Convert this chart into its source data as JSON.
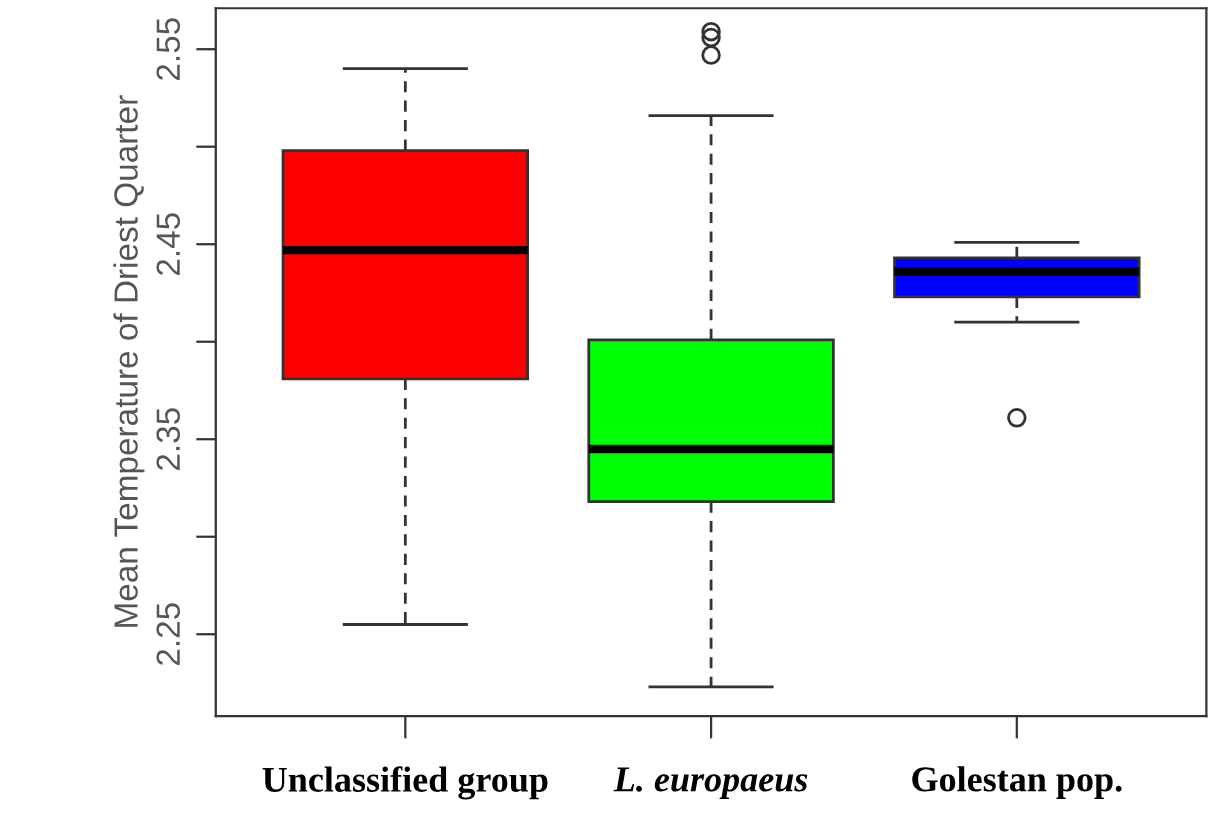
{
  "chart_data": {
    "type": "box",
    "ylabel": "Mean Temperature of Driest Quarter",
    "categories": [
      "Unclassified group",
      "L. europaeus",
      "Golestan pop."
    ],
    "colors": [
      "#ff0000",
      "#00ff00",
      "#0000ff"
    ],
    "boxes": [
      {
        "low": 2.255,
        "q1": 2.381,
        "median": 2.447,
        "q3": 2.498,
        "high": 2.54
      },
      {
        "low": 2.223,
        "q1": 2.318,
        "median": 2.345,
        "q3": 2.401,
        "high": 2.516,
        "outliers": [
          2.559,
          2.556,
          2.547
        ]
      },
      {
        "low": 2.41,
        "q1": 2.423,
        "median": 2.436,
        "q3": 2.443,
        "high": 2.451,
        "outliers": [
          2.361
        ]
      }
    ],
    "ylim": [
      2.208,
      2.571
    ],
    "yticks": [
      2.25,
      {
        "value": 2.3,
        "label": null
      },
      2.35,
      {
        "value": 2.4,
        "label": null
      },
      2.45,
      {
        "value": 2.5,
        "label": null
      },
      2.55
    ],
    "grid": false
  }
}
